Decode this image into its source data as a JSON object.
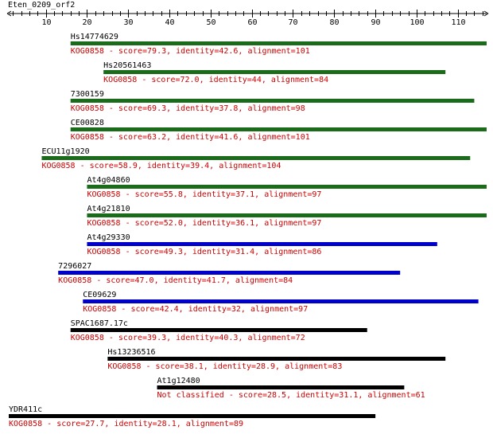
{
  "ruler": {
    "title": "Eten_0209_orf2",
    "tick_labels": [
      "10",
      "20",
      "30",
      "40",
      "50",
      "60",
      "70",
      "80",
      "90",
      "100",
      "110"
    ],
    "major_ticks": [
      10,
      20,
      30,
      40,
      50,
      60,
      70,
      80,
      90,
      100,
      110
    ],
    "min": 1,
    "max": 117
  },
  "hits": [
    {
      "name": "Hs14774629",
      "caption": "KOG0858 - score=79.3, identity=42.6, alignment=101",
      "start": 16,
      "end": 117,
      "color": "#1a6b1a"
    },
    {
      "name": "Hs20561463",
      "caption": "KOG0858 - score=72.0, identity=44, alignment=84",
      "start": 24,
      "end": 107,
      "color": "#1a6b1a"
    },
    {
      "name": "7300159",
      "caption": "KOG0858 - score=69.3, identity=37.8, alignment=98",
      "start": 16,
      "end": 114,
      "color": "#1a6b1a"
    },
    {
      "name": "CE00828",
      "caption": "KOG0858 - score=63.2, identity=41.6, alignment=101",
      "start": 16,
      "end": 117,
      "color": "#1a6b1a"
    },
    {
      "name": "ECU11g1920",
      "caption": "KOG0858 - score=58.9, identity=39.4, alignment=104",
      "start": 9,
      "end": 113,
      "color": "#1a6b1a"
    },
    {
      "name": "At4g04860",
      "caption": "KOG0858 - score=55.8, identity=37.1, alignment=97",
      "start": 20,
      "end": 117,
      "color": "#1a6b1a"
    },
    {
      "name": "At4g21810",
      "caption": "KOG0858 - score=52.0, identity=36.1, alignment=97",
      "start": 20,
      "end": 117,
      "color": "#1a6b1a"
    },
    {
      "name": "At4g29330",
      "caption": "KOG0858 - score=49.3, identity=31.4, alignment=86",
      "start": 20,
      "end": 105,
      "color": "#0000cc"
    },
    {
      "name": "7296027",
      "caption": "KOG0858 - score=47.0, identity=41.7, alignment=84",
      "start": 13,
      "end": 96,
      "color": "#0000cc"
    },
    {
      "name": "CE09629",
      "caption": "KOG0858 - score=42.4, identity=32, alignment=97",
      "start": 19,
      "end": 115,
      "color": "#0000cc"
    },
    {
      "name": "SPAC1687.17c",
      "caption": "KOG0858 - score=39.3, identity=40.3, alignment=72",
      "start": 16,
      "end": 88,
      "color": "#000000"
    },
    {
      "name": "Hs13236516",
      "caption": "KOG0858 - score=38.1, identity=28.9, alignment=83",
      "start": 25,
      "end": 107,
      "color": "#000000"
    },
    {
      "name": "At1g12480",
      "caption": "Not classified - score=28.5, identity=31.1, alignment=61",
      "start": 37,
      "end": 97,
      "color": "#000000"
    },
    {
      "name": "YDR411c",
      "caption": "KOG0858 - score=27.7, identity=28.1, alignment=89",
      "start": 1,
      "end": 90,
      "color": "#000000"
    }
  ]
}
